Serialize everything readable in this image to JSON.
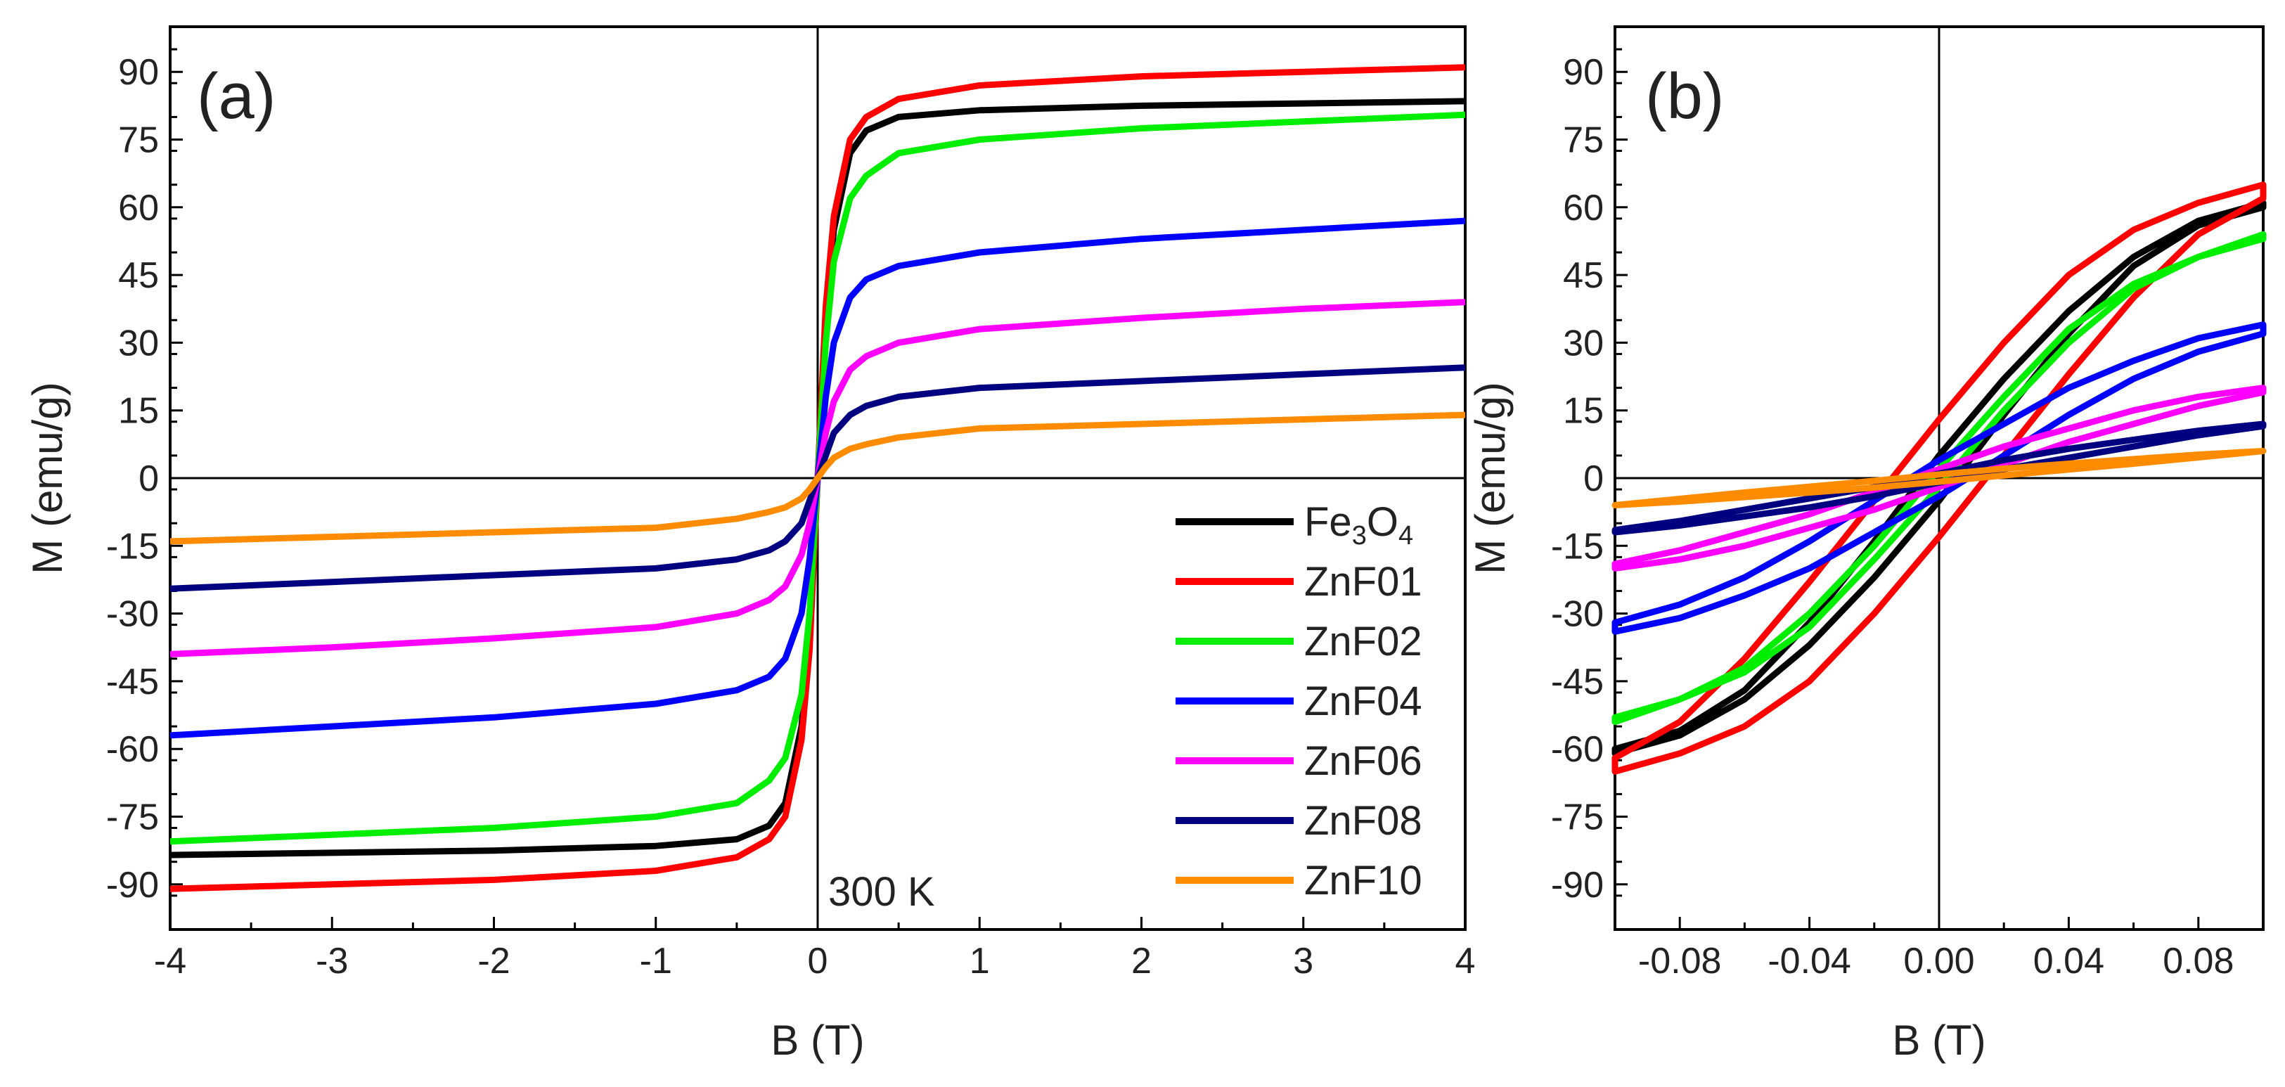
{
  "chart_data": [
    {
      "type": "line",
      "panel_label": "(a)",
      "xlabel": "B (T)",
      "ylabel": "M (emu/g)",
      "xlim": [
        -4,
        4
      ],
      "ylim": [
        -100,
        100
      ],
      "xticks": [
        -4,
        -3,
        -2,
        -1,
        0,
        1,
        2,
        3,
        4
      ],
      "yticks": [
        -90,
        -75,
        -60,
        -45,
        -30,
        -15,
        0,
        15,
        30,
        45,
        60,
        75,
        90
      ],
      "annotation": "300 K",
      "grid": false,
      "zero_lines": true,
      "legend_position": "bottom-right",
      "legend": [
        "Fe3O4",
        "ZnF01",
        "ZnF02",
        "ZnF04",
        "ZnF06",
        "ZnF08",
        "ZnF10"
      ],
      "series": [
        {
          "name": "Fe3O4",
          "color": "#000000",
          "x": [
            0,
            0.05,
            0.1,
            0.2,
            0.3,
            0.5,
            1,
            2,
            3,
            4
          ],
          "y": [
            0,
            35,
            55,
            72,
            77,
            80,
            81.5,
            82.5,
            83,
            83.5
          ]
        },
        {
          "name": "ZnF01",
          "color": "#ff0000",
          "x": [
            0,
            0.05,
            0.1,
            0.2,
            0.3,
            0.5,
            1,
            2,
            3,
            4
          ],
          "y": [
            0,
            38,
            58,
            75,
            80,
            84,
            87,
            89,
            90,
            91
          ]
        },
        {
          "name": "ZnF02",
          "color": "#00ee00",
          "x": [
            0,
            0.05,
            0.1,
            0.2,
            0.3,
            0.5,
            1,
            2,
            3,
            4
          ],
          "y": [
            0,
            30,
            48,
            62,
            67,
            72,
            75,
            77.5,
            79,
            80.5
          ]
        },
        {
          "name": "ZnF04",
          "color": "#0000ff",
          "x": [
            0,
            0.05,
            0.1,
            0.2,
            0.3,
            0.5,
            1,
            2,
            3,
            4
          ],
          "y": [
            0,
            18,
            30,
            40,
            44,
            47,
            50,
            53,
            55,
            57
          ]
        },
        {
          "name": "ZnF06",
          "color": "#ff00ff",
          "x": [
            0,
            0.05,
            0.1,
            0.2,
            0.3,
            0.5,
            1,
            2,
            3,
            4
          ],
          "y": [
            0,
            10,
            17,
            24,
            27,
            30,
            33,
            35.5,
            37.5,
            39
          ]
        },
        {
          "name": "ZnF08",
          "color": "#000080",
          "x": [
            0,
            0.05,
            0.1,
            0.2,
            0.3,
            0.5,
            1,
            2,
            3,
            4
          ],
          "y": [
            0,
            5,
            10,
            14,
            16,
            18,
            20,
            21.5,
            23,
            24.5
          ]
        },
        {
          "name": "ZnF10",
          "color": "#ff8c00",
          "x": [
            0,
            0.05,
            0.1,
            0.2,
            0.3,
            0.5,
            1,
            2,
            3,
            4
          ],
          "y": [
            0,
            2.5,
            4.5,
            6.5,
            7.5,
            9,
            11,
            12,
            13,
            14
          ]
        }
      ]
    },
    {
      "type": "line",
      "panel_label": "(b)",
      "xlabel": "B (T)",
      "ylabel": "M (emu/g)",
      "xlim": [
        -0.1,
        0.1
      ],
      "ylim": [
        -100,
        100
      ],
      "xticks": [
        -0.08,
        -0.04,
        0.0,
        0.04,
        0.08
      ],
      "xtick_labels": [
        "-0.08",
        "-0.04",
        "0.00",
        "0.04",
        "0.08"
      ],
      "yticks": [
        -90,
        -75,
        -60,
        -45,
        -30,
        -15,
        0,
        15,
        30,
        45,
        60,
        75,
        90
      ],
      "grid": false,
      "zero_lines": true,
      "series": [
        {
          "name": "Fe3O4",
          "color": "#000000",
          "x": [
            -0.1,
            -0.08,
            -0.06,
            -0.04,
            -0.02,
            0,
            0.02,
            0.04,
            0.06,
            0.08,
            0.1
          ],
          "y": [
            -60,
            -56,
            -47,
            -32,
            -14,
            5,
            22,
            37,
            49,
            57,
            61
          ]
        },
        {
          "name": "ZnF01",
          "color": "#ff0000",
          "x": [
            -0.1,
            -0.08,
            -0.06,
            -0.04,
            -0.02,
            0,
            0.02,
            0.04,
            0.06,
            0.08,
            0.1
          ],
          "y": [
            -65,
            -61,
            -55,
            -45,
            -30,
            -13,
            5,
            23,
            40,
            54,
            62
          ]
        },
        {
          "name": "ZnF02",
          "color": "#00ee00",
          "x": [
            -0.1,
            -0.08,
            -0.06,
            -0.04,
            -0.02,
            0,
            0.02,
            0.04,
            0.06,
            0.08,
            0.1
          ],
          "y": [
            -54,
            -49,
            -43,
            -33,
            -18,
            -2,
            15,
            30,
            42,
            49,
            53
          ]
        },
        {
          "name": "ZnF04",
          "color": "#0000ff",
          "x": [
            -0.1,
            -0.08,
            -0.06,
            -0.04,
            -0.02,
            0,
            0.02,
            0.04,
            0.06,
            0.08,
            0.1
          ],
          "y": [
            -34,
            -31,
            -26,
            -20,
            -12,
            -4,
            5,
            14,
            22,
            28,
            32
          ]
        },
        {
          "name": "ZnF06",
          "color": "#ff00ff",
          "x": [
            -0.1,
            -0.08,
            -0.06,
            -0.04,
            -0.02,
            0,
            0.02,
            0.04,
            0.06,
            0.08,
            0.1
          ],
          "y": [
            -20,
            -18,
            -15,
            -11,
            -7,
            -2,
            3,
            8,
            12,
            16,
            19
          ]
        },
        {
          "name": "ZnF08",
          "color": "#000080",
          "x": [
            -0.1,
            -0.08,
            -0.06,
            -0.04,
            -0.02,
            0,
            0.02,
            0.04,
            0.06,
            0.08,
            0.1
          ],
          "y": [
            -12,
            -10.5,
            -8.5,
            -6.5,
            -4,
            -1,
            2,
            4.5,
            7,
            9.5,
            11.5
          ]
        },
        {
          "name": "ZnF10",
          "color": "#ff8c00",
          "x": [
            -0.1,
            -0.08,
            -0.06,
            -0.04,
            -0.02,
            0,
            0.02,
            0.04,
            0.06,
            0.08,
            0.1
          ],
          "y": [
            -6,
            -5.2,
            -4.2,
            -3.2,
            -2.1,
            -0.8,
            0.6,
            1.9,
            3.2,
            4.6,
            6
          ]
        }
      ]
    }
  ],
  "legend_labels": [
    {
      "base": "Fe",
      "sub1": "3",
      "mid": "O",
      "sub2": "4"
    },
    {
      "text": "ZnF01"
    },
    {
      "text": "ZnF02"
    },
    {
      "text": "ZnF04"
    },
    {
      "text": "ZnF06"
    },
    {
      "text": "ZnF08"
    },
    {
      "text": "ZnF10"
    }
  ]
}
